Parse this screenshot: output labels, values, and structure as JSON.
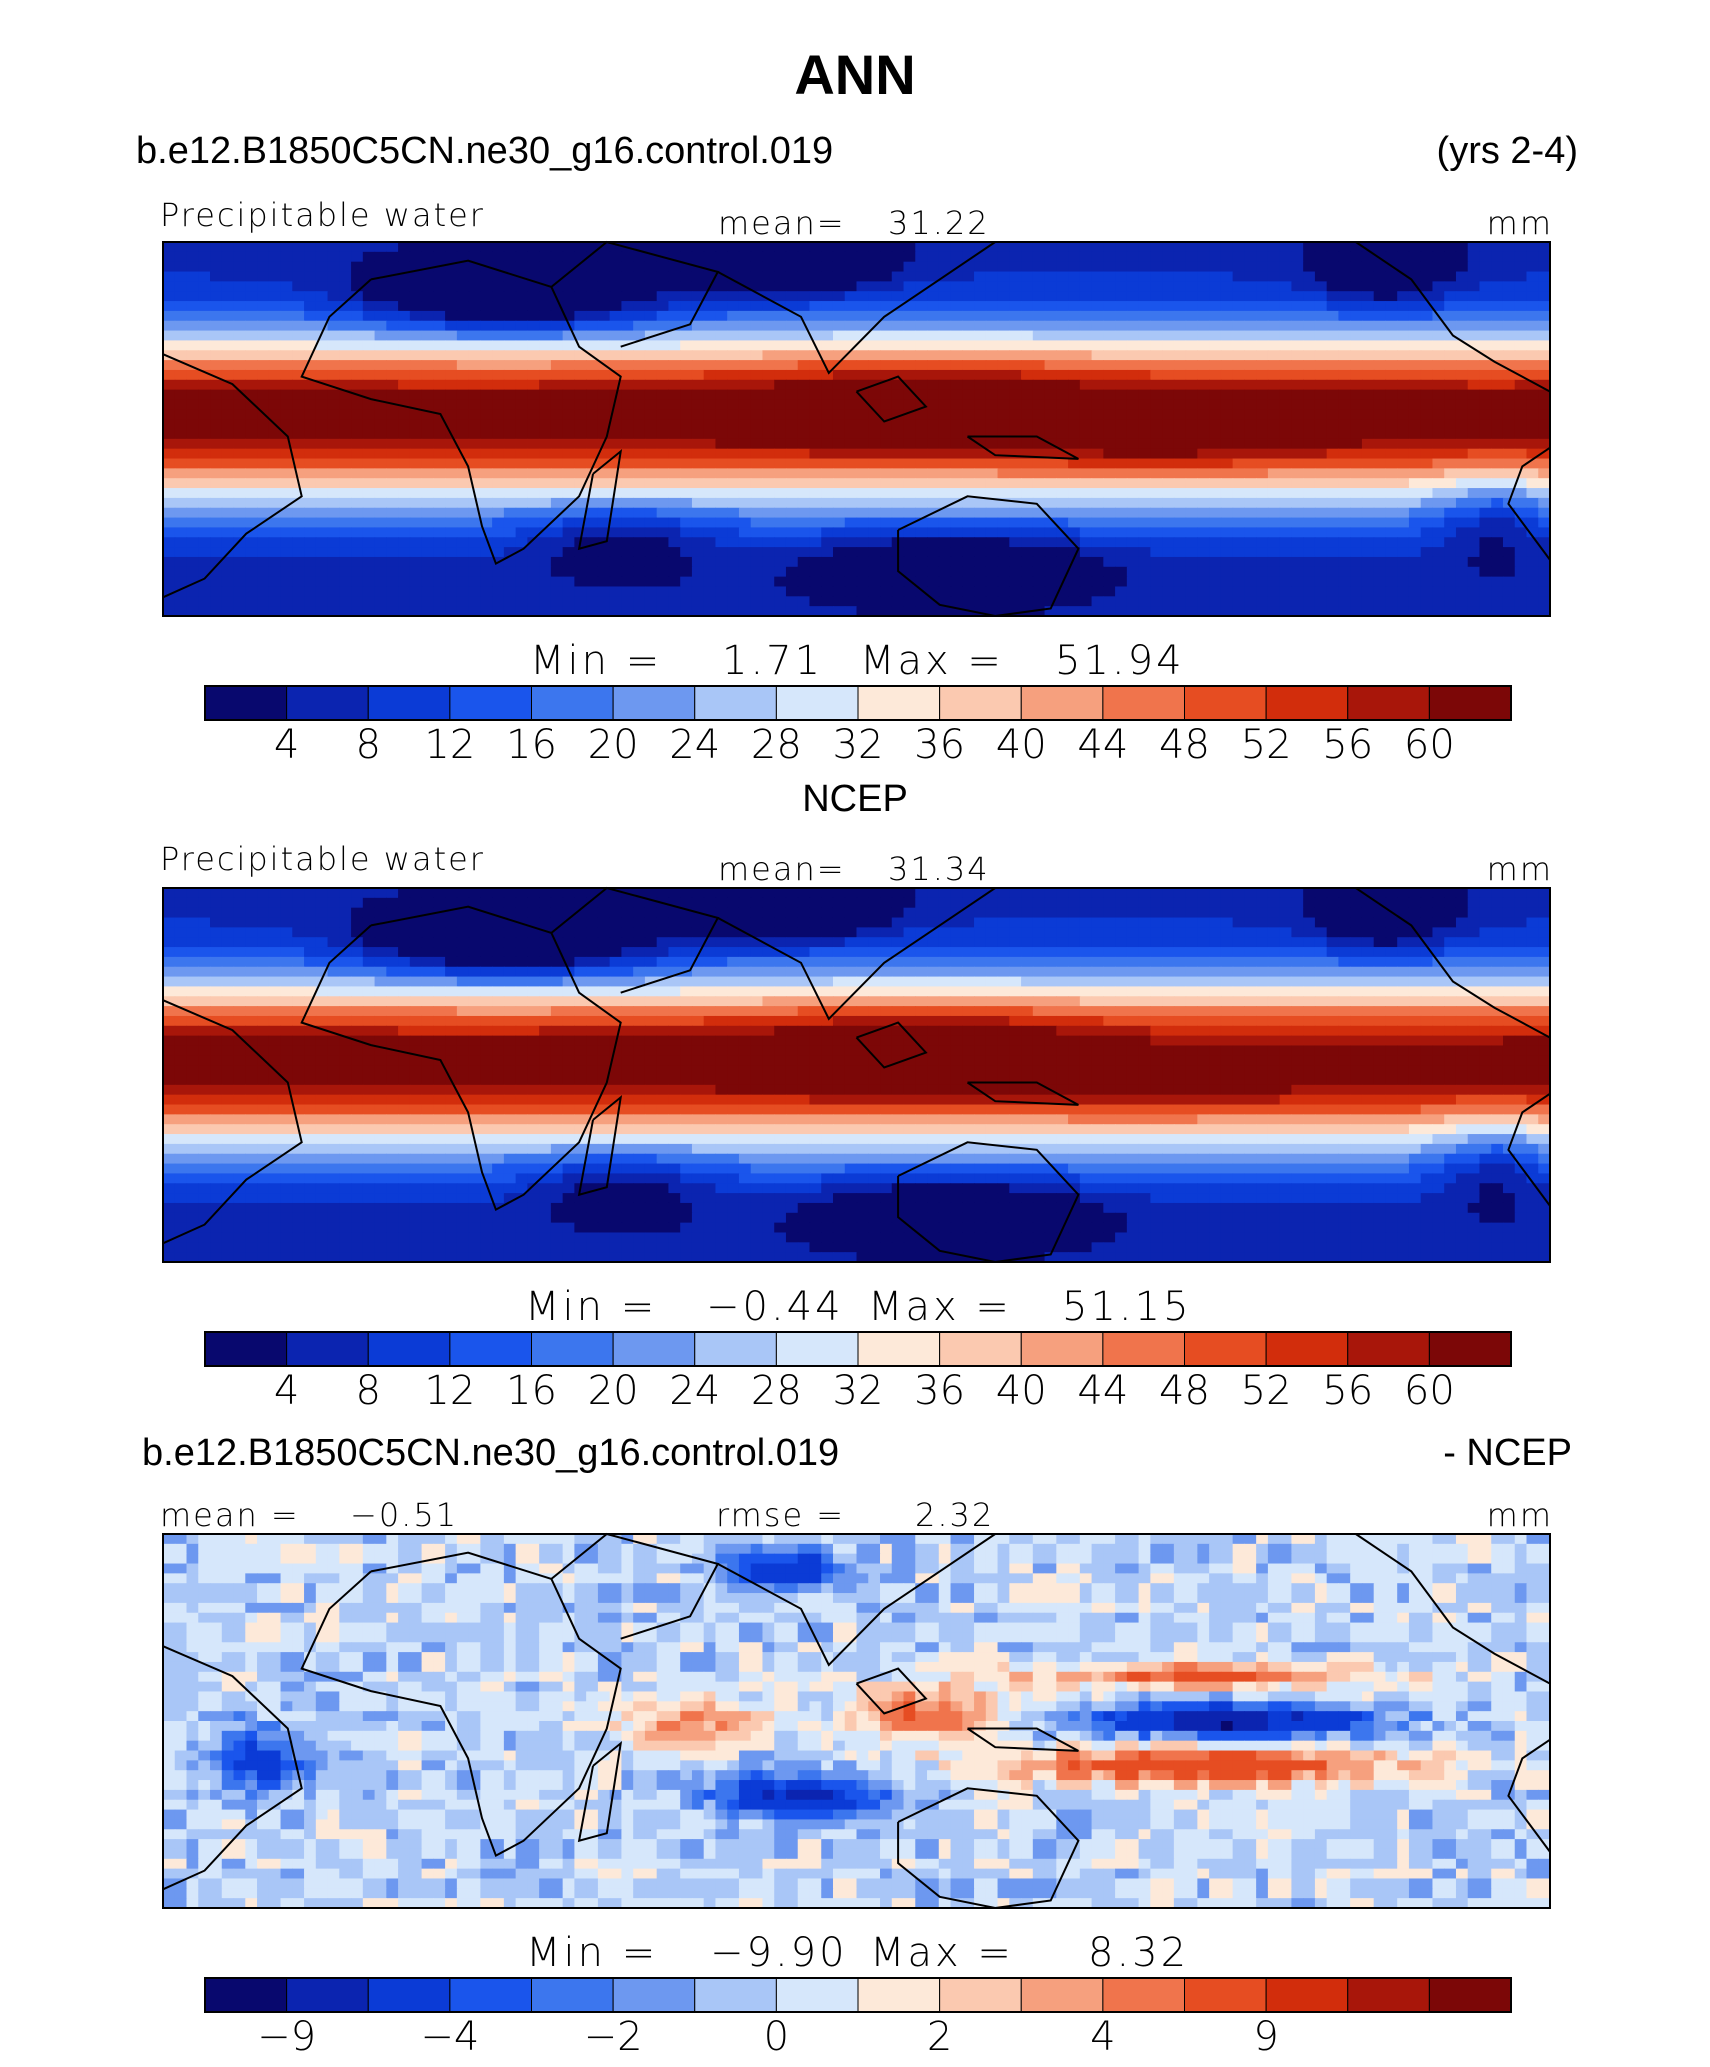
{
  "figure": {
    "title": "ANN",
    "case_name": "b.e12.B1850C5CN.ne30_g16.control.019",
    "years": "(yrs 2-4)",
    "obs_name": "NCEP",
    "diff_case_name": "b.e12.B1850C5CN.ne30_g16.control.019",
    "diff_suffix": "- NCEP"
  },
  "chart_data": [
    {
      "type": "heatmap",
      "panel": "model",
      "variable_label": "Precipitable water",
      "mean_label": "mean=",
      "mean_value": "31.22",
      "units": "mm",
      "min_label": "Min =",
      "min_value": "1.71",
      "max_label": "Max =",
      "max_value": "51.94",
      "colorbar_ticks": [
        "4",
        "8",
        "12",
        "16",
        "20",
        "24",
        "28",
        "32",
        "36",
        "40",
        "44",
        "48",
        "52",
        "56",
        "60"
      ]
    },
    {
      "type": "heatmap",
      "panel": "obs",
      "variable_label": "Precipitable water",
      "mean_label": "mean=",
      "mean_value": "31.34",
      "units": "mm",
      "min_label": "Min =",
      "min_value": "−0.44",
      "max_label": "Max =",
      "max_value": "51.15",
      "colorbar_ticks": [
        "4",
        "8",
        "12",
        "16",
        "20",
        "24",
        "28",
        "32",
        "36",
        "40",
        "44",
        "48",
        "52",
        "56",
        "60"
      ]
    },
    {
      "type": "heatmap",
      "panel": "difference",
      "mean_label": "mean =",
      "mean_value": "−0.51",
      "rmse_label": "rmse =",
      "rmse_value": "2.32",
      "units": "mm",
      "min_label": "Min =",
      "min_value": "−9.90",
      "max_label": "Max =",
      "max_value": "8.32",
      "colorbar_ticks": [
        "−9",
        "−4",
        "−2",
        "0",
        "2",
        "4",
        "9"
      ],
      "colorbar_tick_bins": [
        1,
        3,
        5,
        7,
        9,
        11,
        13
      ]
    }
  ],
  "colors": {
    "palette": [
      "#08086e",
      "#0b24b0",
      "#0b3bd6",
      "#1a55ec",
      "#3c76ee",
      "#6d98f0",
      "#a9c6f7",
      "#d6e7fb",
      "#fde9d9",
      "#fbc9b0",
      "#f6a07e",
      "#f0744c",
      "#e64d22",
      "#d22d0c",
      "#a8160a",
      "#7c0707"
    ]
  }
}
